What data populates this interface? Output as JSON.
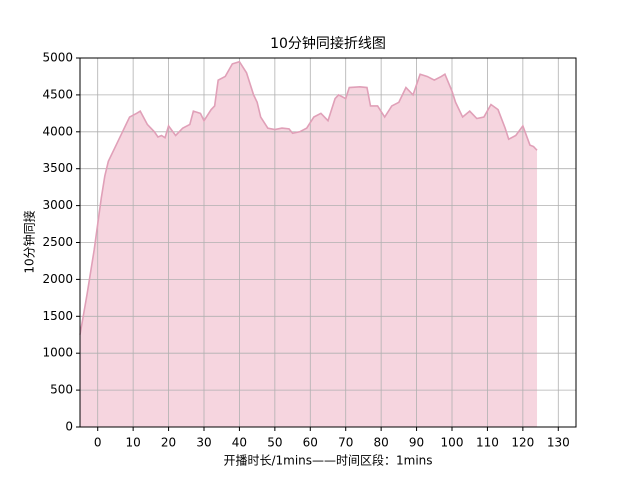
{
  "chart_data": {
    "type": "area",
    "title": "10分钟同接折线图",
    "xlabel": "开播时长/1mins——时间区段：1mins",
    "ylabel": "10分钟同接",
    "x": [
      -5,
      -3,
      -1,
      1,
      2,
      3,
      5,
      7,
      9,
      11,
      12,
      14,
      16,
      17,
      18,
      19,
      20,
      22,
      24,
      26,
      27,
      29,
      30,
      32,
      33,
      34,
      36,
      38,
      40,
      42,
      44,
      45,
      46,
      48,
      50,
      52,
      54,
      55,
      57,
      59,
      61,
      63,
      65,
      67,
      68,
      70,
      71,
      74,
      76,
      77,
      79,
      81,
      83,
      85,
      87,
      89,
      91,
      93,
      95,
      97,
      98,
      100,
      101,
      103,
      105,
      107,
      109,
      111,
      113,
      115,
      116,
      118,
      120,
      122,
      123,
      124
    ],
    "values": [
      1250,
      1800,
      2400,
      3100,
      3400,
      3600,
      3800,
      4000,
      4200,
      4250,
      4280,
      4100,
      4000,
      3930,
      3950,
      3920,
      4080,
      3950,
      4050,
      4100,
      4280,
      4250,
      4150,
      4300,
      4350,
      4700,
      4750,
      4920,
      4950,
      4800,
      4500,
      4400,
      4200,
      4050,
      4030,
      4050,
      4040,
      3980,
      4000,
      4050,
      4200,
      4250,
      4150,
      4450,
      4500,
      4450,
      4600,
      4610,
      4600,
      4350,
      4350,
      4200,
      4350,
      4400,
      4600,
      4500,
      4780,
      4750,
      4700,
      4750,
      4780,
      4550,
      4400,
      4200,
      4280,
      4180,
      4200,
      4370,
      4300,
      4050,
      3900,
      3950,
      4080,
      3820,
      3800,
      3750
    ],
    "color": "#e0a0b8",
    "fill": "#f6d5df",
    "xlim": [
      -5,
      135
    ],
    "xticks": [
      0,
      10,
      20,
      30,
      40,
      50,
      60,
      70,
      80,
      90,
      100,
      110,
      120,
      130
    ],
    "ylim": [
      0,
      5000
    ],
    "yticks": [
      0,
      500,
      1000,
      1500,
      2000,
      2500,
      3000,
      3500,
      4000,
      4500,
      5000
    ],
    "grid": true
  }
}
